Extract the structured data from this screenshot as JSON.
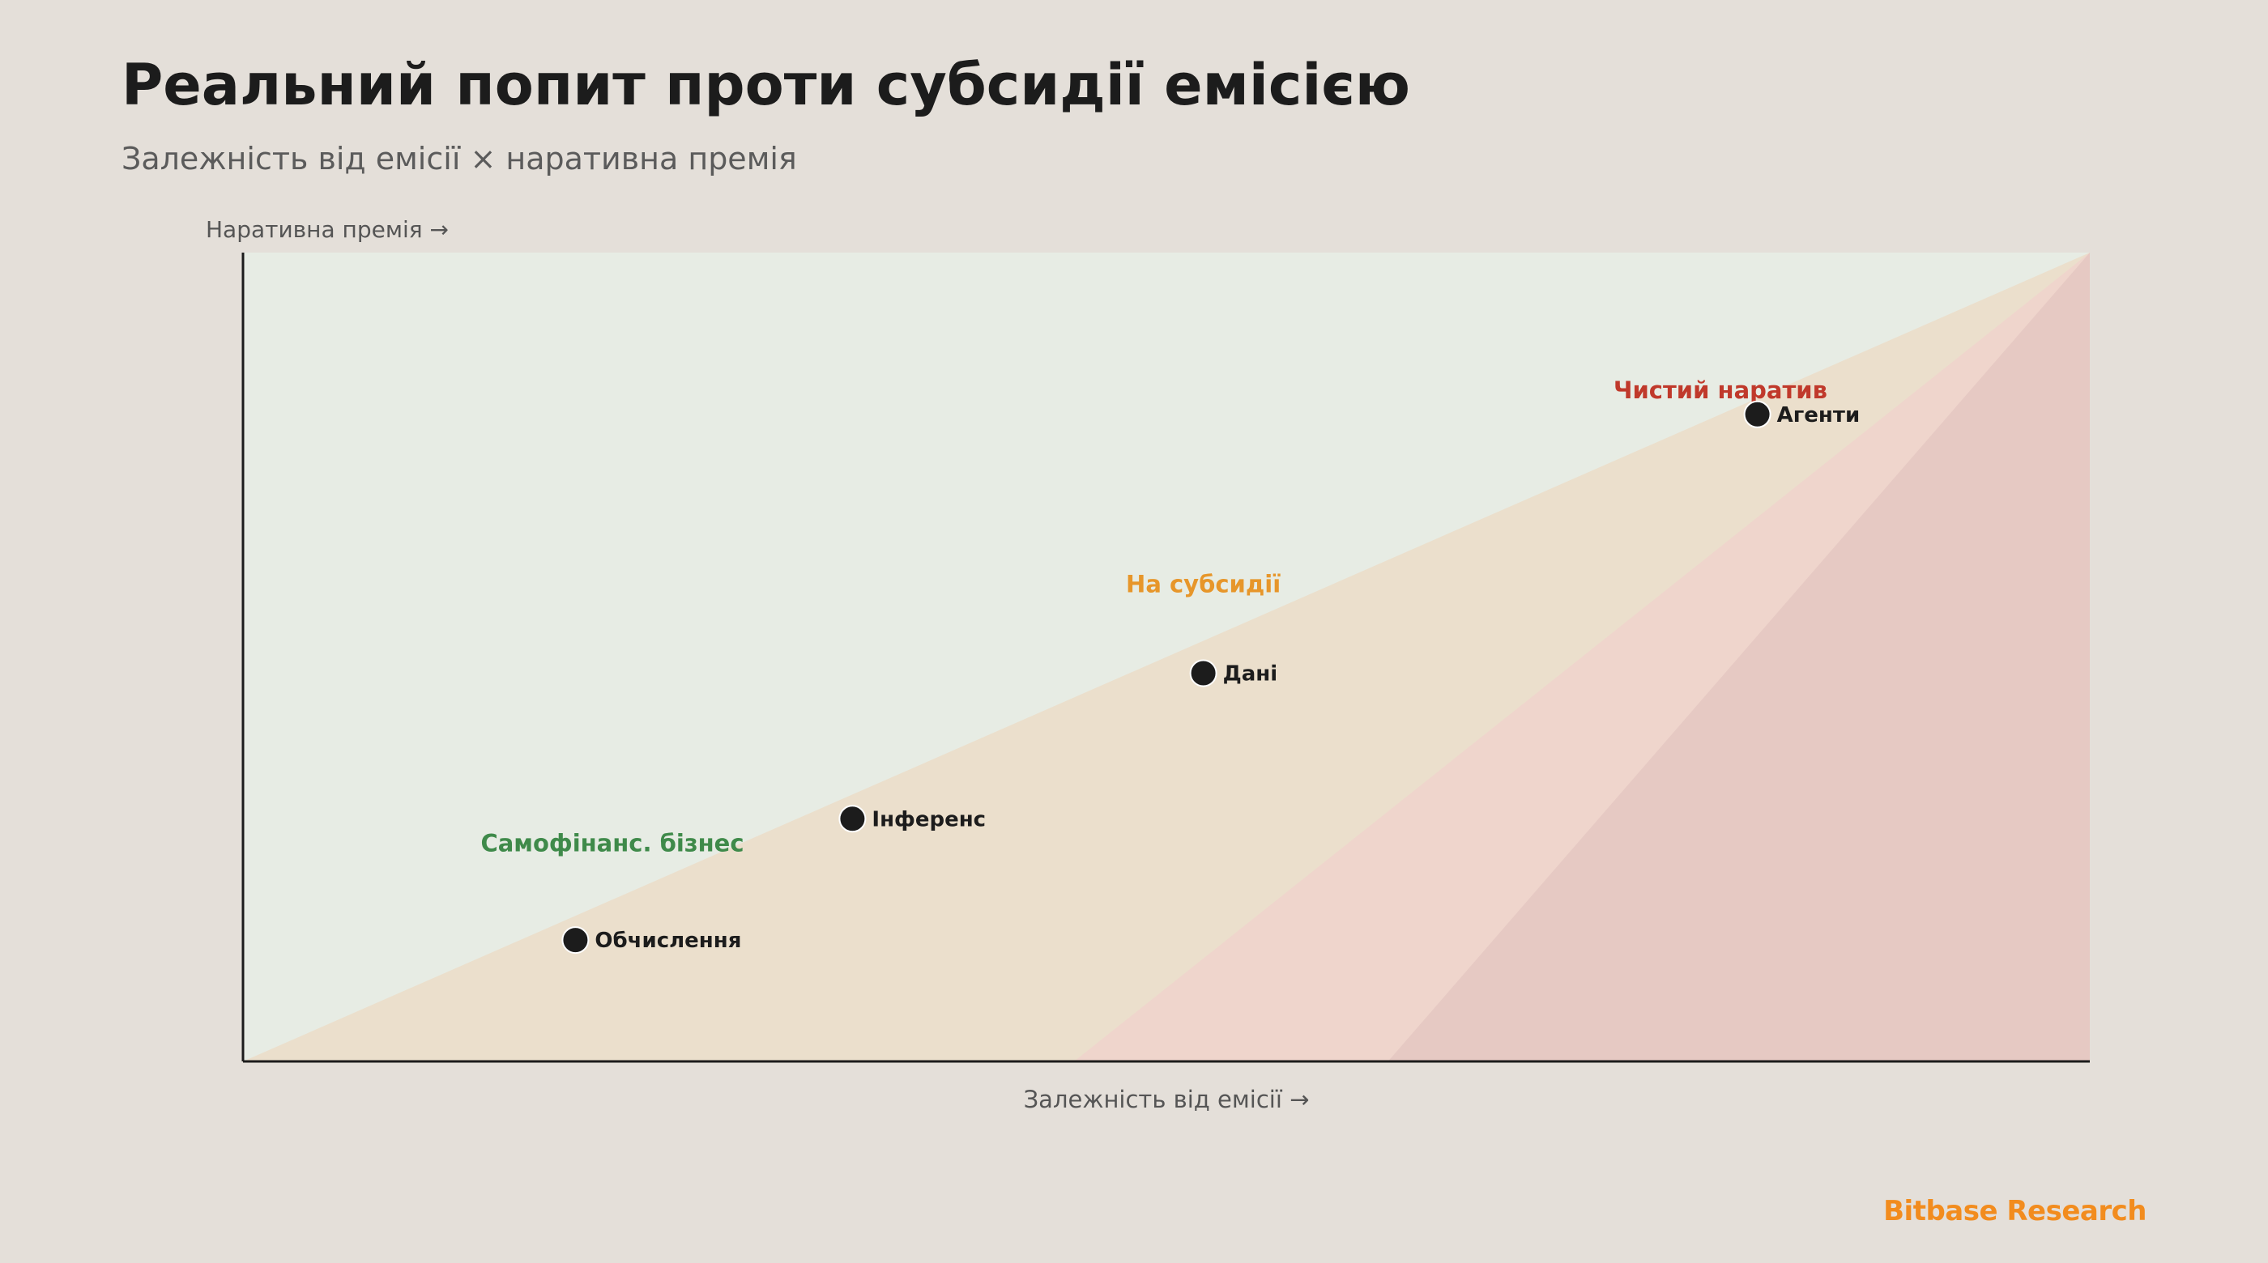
{
  "header": {
    "title": "Реальний попит проти субсидії емісією",
    "subtitle": "Залежність від емісії × наративна премія"
  },
  "footer": {
    "brand": "Bitbase Research"
  },
  "chart_data": {
    "type": "scatter",
    "xlabel": "Залежність від емісії →",
    "ylabel": "Наративна премія →",
    "xlim": [
      0,
      1
    ],
    "ylim": [
      0,
      1
    ],
    "grid": false,
    "zones": [
      {
        "name": "Самофінанс. бізнес",
        "color": "#3f8a4a",
        "fill": "#e7ece4",
        "label_x": 0.2,
        "label_y": 0.26
      },
      {
        "name": "На субсидії",
        "color": "#e7962a",
        "fill": "#ebdfcc",
        "label_x": 0.52,
        "label_y": 0.58
      },
      {
        "name": "Чистий наратив",
        "color": "#c0392b",
        "fill": "#efd5cc",
        "label_x": 0.8,
        "label_y": 0.82
      }
    ],
    "points": [
      {
        "label": "Обчислення",
        "x": 0.18,
        "y": 0.15
      },
      {
        "label": "Інференс",
        "x": 0.33,
        "y": 0.3
      },
      {
        "label": "Дані",
        "x": 0.52,
        "y": 0.48
      },
      {
        "label": "Агенти",
        "x": 0.82,
        "y": 0.8
      }
    ]
  }
}
